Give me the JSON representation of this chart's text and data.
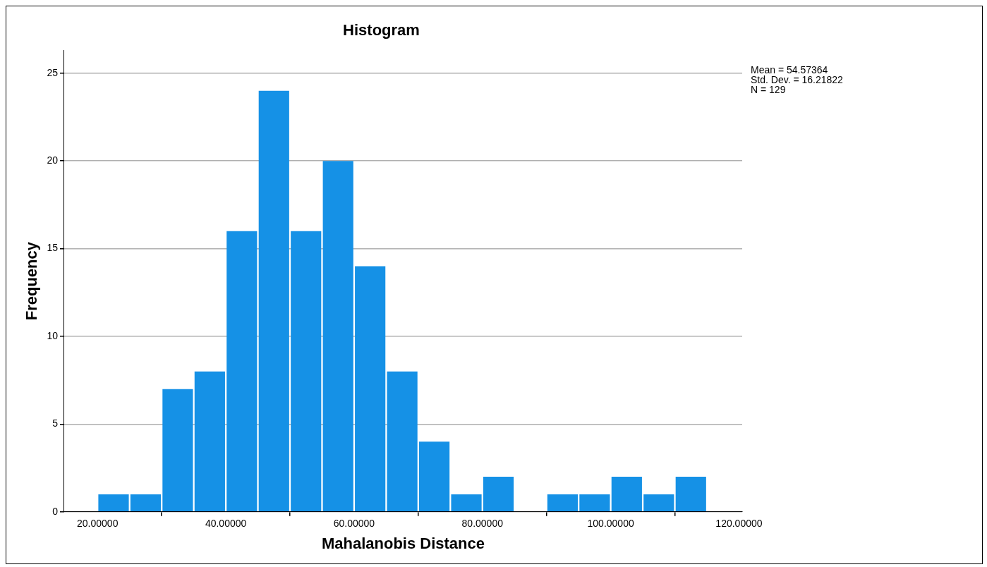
{
  "chart_data": {
    "type": "histogram",
    "title": "Histogram",
    "xlabel": "Mahalanobis Distance",
    "ylabel": "Frequency",
    "bins": [
      20,
      25,
      30,
      35,
      40,
      45,
      50,
      55,
      60,
      65,
      70,
      75,
      80,
      85,
      90,
      95,
      100,
      105,
      110,
      115
    ],
    "values": [
      1,
      1,
      7,
      8,
      16,
      24,
      16,
      20,
      14,
      8,
      4,
      1,
      2,
      0,
      1,
      1,
      2,
      1,
      2
    ],
    "color": "#1591e6",
    "xlim": [
      14.8,
      120.5
    ],
    "xticks": [
      {
        "value": 20,
        "label": "20.00000"
      },
      {
        "value": 40,
        "label": "40.00000"
      },
      {
        "value": 60,
        "label": "60.00000"
      },
      {
        "value": 80,
        "label": "80.00000"
      },
      {
        "value": 100,
        "label": "100.00000"
      },
      {
        "value": 120,
        "label": "120.00000"
      }
    ],
    "ylim": [
      0,
      26.3
    ],
    "yticks": [
      0,
      5,
      10,
      15,
      20,
      25
    ],
    "grid": "y",
    "legend": false,
    "annotations": [
      "Mean = 54.57364",
      "Std. Dev. = 16.21822",
      "N = 129"
    ]
  }
}
